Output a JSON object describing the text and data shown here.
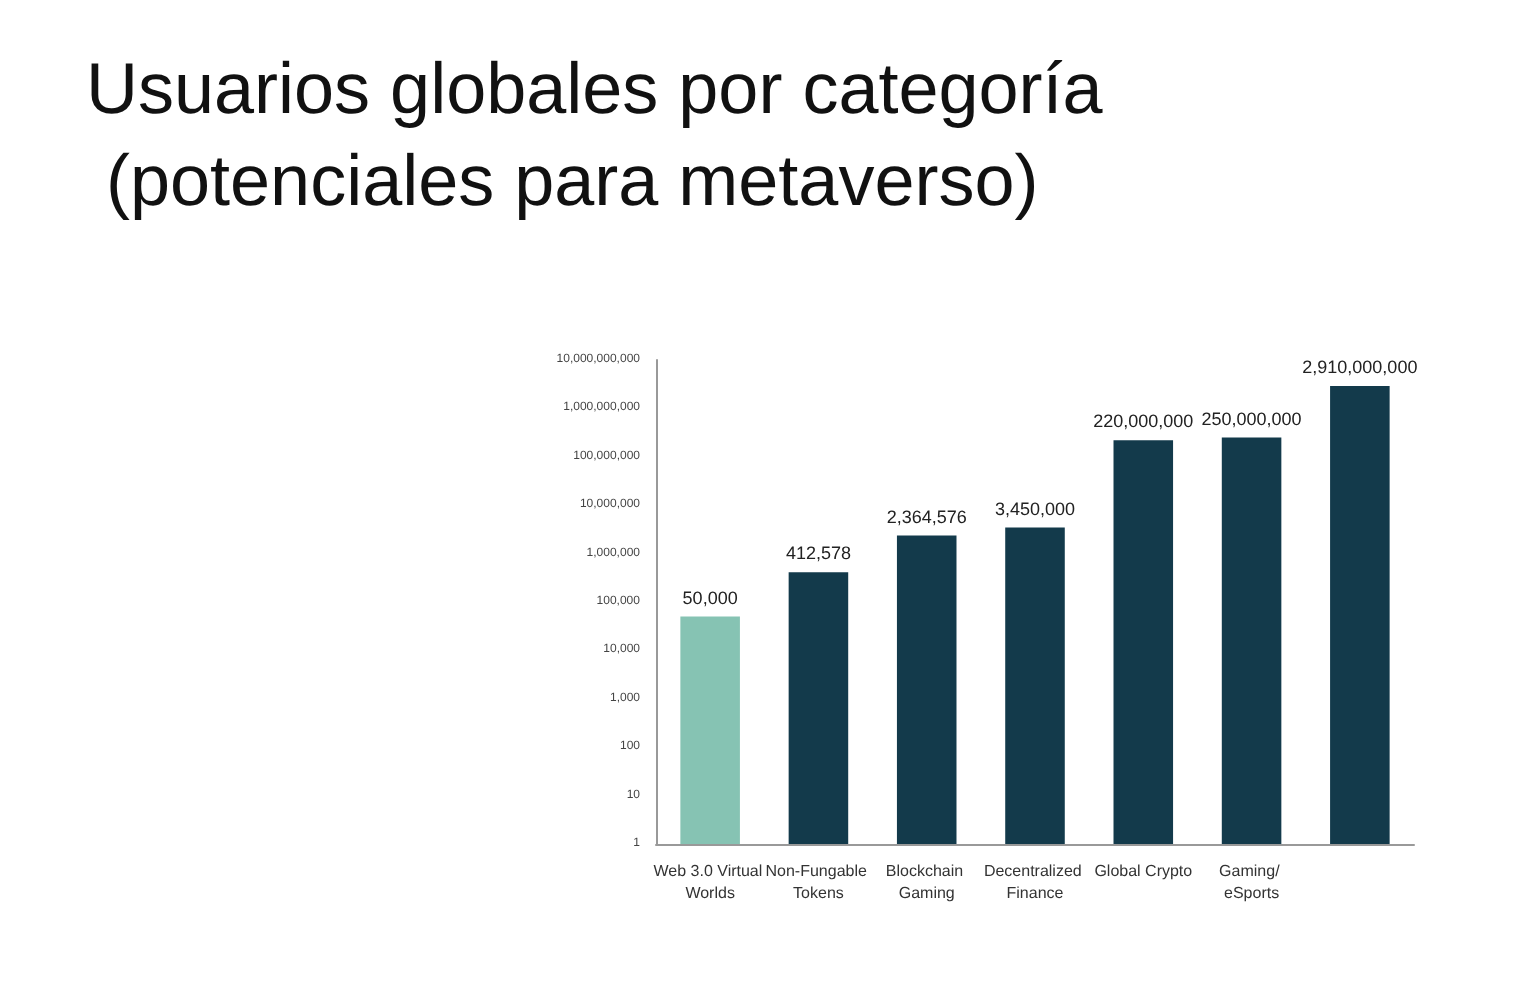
{
  "chart_data": {
    "type": "bar",
    "title": "Usuarios globales por categoría (potenciales para metaverso)",
    "categories": [
      "Web 3.0 Virtual Worlds",
      "Non-Fungable Tokens",
      "Blockchain Gaming",
      "Decentralized Finance",
      "Global Crypto",
      "Gaming/ eSports",
      null
    ],
    "values": [
      50000,
      412578,
      2364576,
      3450000,
      220000000,
      250000000,
      2910000000
    ],
    "colors": [
      "#86c3b3",
      "#133a4b",
      "#133a4b",
      "#133a4b",
      "#133a4b",
      "#133a4b",
      "#133a4b"
    ],
    "value_labels": [
      "50,000",
      "412,578",
      "2,364,576",
      "3,450,000",
      "220,000,000",
      "250,000,000",
      "2,910,000,000"
    ],
    "log": true,
    "ylim": [
      1,
      10000000000
    ],
    "yticks": [
      1,
      10,
      100,
      {
        "value": 1000,
        "label": "1,000"
      },
      {
        "value": 10000,
        "label": "10,000"
      },
      {
        "value": 100000,
        "label": "100,000"
      },
      {
        "value": 1000000,
        "label": "1,000,000"
      },
      {
        "value": 10000000,
        "label": "10,000,000"
      },
      {
        "value": 100000000,
        "label": "100,000,000"
      },
      {
        "value": 1000000000,
        "label": "1,000,000,000"
      },
      {
        "value": 10000000000,
        "label": "10,000,000,000"
      }
    ],
    "grid": false
  }
}
